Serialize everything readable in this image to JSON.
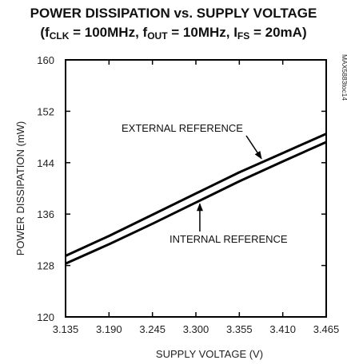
{
  "chart_data": {
    "type": "line",
    "title": "POWER DISSIPATION vs. SUPPLY VOLTAGE",
    "subtitle": {
      "open": "(f",
      "clk_sub": "CLK",
      "mid1": " = 100MHz, f",
      "out_sub": "OUT",
      "mid2": " = 10MHz, I",
      "fs_sub": "FS",
      "close": " = 20mA)"
    },
    "xlabel": "SUPPLY VOLTAGE (V)",
    "ylabel": "POWER DISSIPATION (mW)",
    "xlim": [
      3.135,
      3.465
    ],
    "ylim": [
      120,
      160
    ],
    "xticks": [
      "3.135",
      "3.190",
      "3.245",
      "3.300",
      "3.355",
      "3.410",
      "3.465"
    ],
    "yticks": [
      "120",
      "128",
      "136",
      "144",
      "152",
      "160"
    ],
    "grid": false,
    "figure_code": "MAX5883toc14",
    "series": [
      {
        "name": "EXTERNAL REFERENCE",
        "x": [
          3.135,
          3.19,
          3.245,
          3.3,
          3.355,
          3.41,
          3.465
        ],
        "y": [
          129.5,
          132.6,
          135.9,
          139.2,
          142.5,
          145.5,
          148.5
        ]
      },
      {
        "name": "INTERNAL REFERENCE",
        "x": [
          3.135,
          3.19,
          3.245,
          3.3,
          3.355,
          3.41,
          3.465
        ],
        "y": [
          128.3,
          131.3,
          134.5,
          137.8,
          141.1,
          144.2,
          147.2
        ]
      }
    ],
    "annotations": [
      {
        "text": "EXTERNAL REFERENCE",
        "series": 0,
        "x": 3.385
      },
      {
        "text": "INTERNAL REFERENCE",
        "series": 1,
        "x": 3.305
      }
    ]
  }
}
